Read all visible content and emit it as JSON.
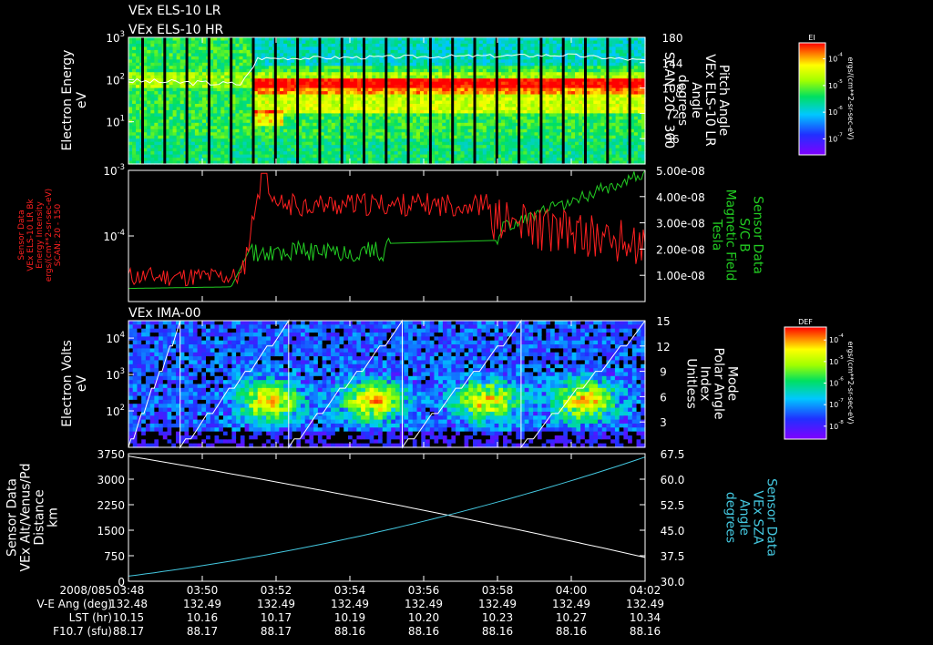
{
  "colors": {
    "background": "#000000",
    "axis": "#ffffff",
    "red_trace": "#ff2020",
    "green_trace": "#22cc22",
    "green_label": "#22cc22",
    "red_label": "#ff2020",
    "cyan": "#44c8e0",
    "pitch_trace": "#ffffff"
  },
  "header": {
    "title_lr": "VEx ELS-10 LR",
    "title_hr": "VEx ELS-10 HR"
  },
  "chart_data": [
    {
      "type": "heatmap",
      "title": "VEx ELS-10 LR / VEx ELS-10 HR",
      "ylabel_lines": [
        "Electron Energy",
        "eV"
      ],
      "y_scale": "log",
      "ylim": [
        1,
        1000
      ],
      "y_ticks": [
        {
          "v": 10,
          "base": "10",
          "exp": "1"
        },
        {
          "v": 100,
          "base": "10",
          "exp": "2"
        },
        {
          "v": 1000,
          "base": "10",
          "exp": "3"
        }
      ],
      "y2label_lines": [
        "Pitch Angle",
        "VEx ELS-10 LR",
        "Angle",
        "degrees",
        "SCAN: 20 - 300"
      ],
      "y2lim": [
        0,
        180
      ],
      "y2_ticks": [
        "36",
        "72",
        "108",
        "144",
        "180"
      ],
      "colorbar": {
        "title": "EI",
        "units": "ergs/(cm**2-sr-sec-eV)",
        "tick_labels": [
          {
            "base": "10",
            "exp": "-4"
          },
          {
            "base": "10",
            "exp": "-5"
          },
          {
            "base": "10",
            "exp": "-6"
          },
          {
            "base": "10",
            "exp": "-7"
          }
        ]
      }
    },
    {
      "type": "line",
      "ylabel_lines": [
        "Sensor Data",
        "VEx ELS-10 LR Bk",
        "Energy Intensity",
        "ergs/(cm**2-sr-sec-eV)",
        "SCAN: 20 - 150"
      ],
      "y_scale": "log",
      "ylim": [
        1e-05,
        0.001
      ],
      "y_ticks": [
        {
          "v": 0.0001,
          "base": "10",
          "exp": "-4"
        },
        {
          "v": 0.001,
          "base": "10",
          "exp": "-3"
        }
      ],
      "y2label_lines": [
        "Sensor Data",
        "S/C B",
        "Magnetic Field",
        "Tesla"
      ],
      "y2lim": [
        0,
        5e-08
      ],
      "y2_ticks": [
        "1.00e-08",
        "2.00e-08",
        "3.00e-08",
        "4.00e-08",
        "5.00e-08"
      ],
      "series": []
    },
    {
      "type": "heatmap",
      "title": "VEx IMA-00",
      "ylabel_lines": [
        "Electron Volts",
        "eV"
      ],
      "y_scale": "log",
      "ylim": [
        10,
        30000
      ],
      "y_ticks": [
        {
          "v": 100,
          "base": "10",
          "exp": "2"
        },
        {
          "v": 1000,
          "base": "10",
          "exp": "3"
        },
        {
          "v": 10000,
          "base": "10",
          "exp": "4"
        }
      ],
      "y2label_lines": [
        "Mode",
        "Polar Angle",
        "Index",
        "Unitless"
      ],
      "y2lim": [
        0,
        15
      ],
      "y2_ticks": [
        "3",
        "6",
        "9",
        "12",
        "15"
      ],
      "colorbar": {
        "title": "DEF",
        "units": "ergs/(cm**2-sr-sec-eV)",
        "tick_labels": [
          {
            "base": "10",
            "exp": "-4"
          },
          {
            "base": "10",
            "exp": "-5"
          },
          {
            "base": "10",
            "exp": "-6"
          },
          {
            "base": "10",
            "exp": "-7"
          },
          {
            "base": "10",
            "exp": "-8"
          }
        ]
      }
    },
    {
      "type": "line",
      "ylabel_lines": [
        "Sensor Data",
        "VEx Alt/Venus/Pd",
        "Distance",
        "km"
      ],
      "ylim": [
        0,
        3750
      ],
      "y_ticks": [
        "0",
        "750",
        "1500",
        "2250",
        "3000",
        "3750"
      ],
      "y2label_lines": [
        "Sensor Data",
        "VEx SZA",
        "Angle",
        "degrees"
      ],
      "y2lim": [
        30.0,
        67.5
      ],
      "y2_ticks": [
        "30.0",
        "37.5",
        "45.0",
        "52.5",
        "60.0",
        "67.5"
      ],
      "series": [
        {
          "x": [
            0,
            14
          ],
          "values": [
            3680,
            700
          ]
        },
        {
          "x": [
            0,
            14
          ],
          "values": [
            31.5,
            66.5
          ]
        }
      ]
    }
  ],
  "time_axis": {
    "ticks": [
      "03:48",
      "03:50",
      "03:52",
      "03:54",
      "03:56",
      "03:58",
      "04:00",
      "04:02"
    ],
    "rows": [
      {
        "label": "2008/085",
        "values": [
          "03:48",
          "03:50",
          "03:52",
          "03:54",
          "03:56",
          "03:58",
          "04:00",
          "04:02"
        ]
      },
      {
        "label": "V-E Ang (deg)",
        "values": [
          "132.48",
          "132.49",
          "132.49",
          "132.49",
          "132.49",
          "132.49",
          "132.49",
          "132.49"
        ]
      },
      {
        "label": "LST (hr)",
        "values": [
          "10.15",
          "10.16",
          "10.17",
          "10.19",
          "10.20",
          "10.23",
          "10.27",
          "10.34"
        ]
      },
      {
        "label": "F10.7 (sfu)",
        "values": [
          "88.17",
          "88.17",
          "88.17",
          "88.16",
          "88.16",
          "88.16",
          "88.16",
          "88.16"
        ]
      }
    ]
  }
}
